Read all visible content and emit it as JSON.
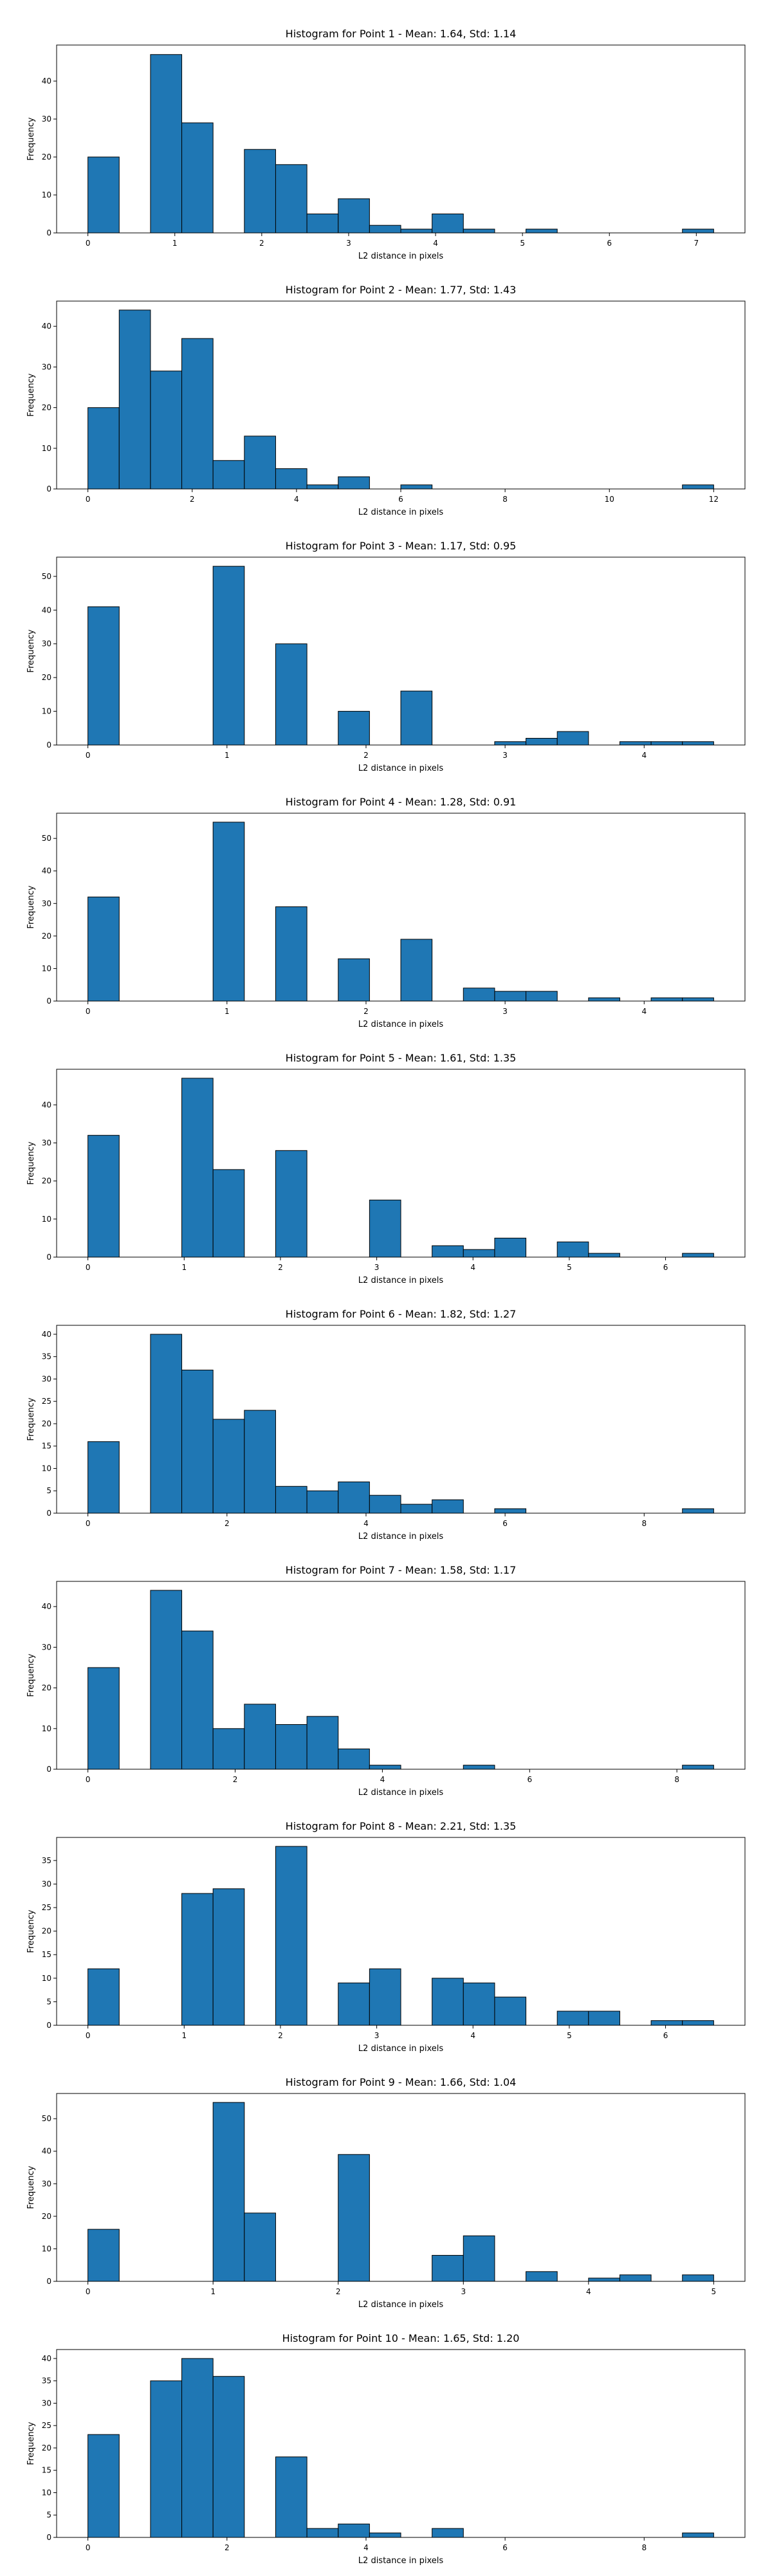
{
  "chart_data": [
    {
      "type": "bar",
      "title": "Histogram for Point 1 - Mean: 1.64, Std: 1.14",
      "xlabel": "L2 distance in pixels",
      "ylabel": "Frequency",
      "xlim": [
        -0.36,
        7.56
      ],
      "ylim": [
        0,
        49.5
      ],
      "xticks": [
        0,
        1,
        2,
        3,
        4,
        5,
        6,
        7
      ],
      "yticks": [
        0,
        10,
        20,
        30,
        40
      ],
      "bins": {
        "start": 0.0,
        "width": 0.36
      },
      "values": [
        20,
        0,
        47,
        29,
        0,
        22,
        18,
        5,
        9,
        2,
        1,
        5,
        1,
        0,
        1,
        0,
        0,
        0,
        0,
        1
      ]
    },
    {
      "type": "bar",
      "title": "Histogram for Point 2 - Mean: 1.77, Std: 1.43",
      "xlabel": "L2 distance in pixels",
      "ylabel": "Frequency",
      "xlim": [
        -0.6,
        12.6
      ],
      "ylim": [
        0,
        46.2
      ],
      "xticks": [
        0,
        2,
        4,
        6,
        8,
        10,
        12
      ],
      "yticks": [
        0,
        10,
        20,
        30,
        40
      ],
      "bins": {
        "start": 0.0,
        "width": 0.6
      },
      "values": [
        20,
        44,
        29,
        37,
        7,
        13,
        5,
        1,
        3,
        0,
        1,
        0,
        0,
        0,
        0,
        0,
        0,
        0,
        0,
        1
      ]
    },
    {
      "type": "bar",
      "title": "Histogram for Point 3 - Mean: 1.17, Std: 0.95",
      "xlabel": "L2 distance in pixels",
      "ylabel": "Frequency",
      "xlim": [
        -0.225,
        4.725
      ],
      "ylim": [
        0,
        55.7
      ],
      "xticks": [
        0,
        1,
        2,
        3,
        4
      ],
      "yticks": [
        0,
        10,
        20,
        30,
        40,
        50
      ],
      "bins": {
        "start": 0.0,
        "width": 0.225
      },
      "values": [
        41,
        0,
        0,
        0,
        53,
        0,
        30,
        0,
        10,
        0,
        16,
        0,
        0,
        1,
        2,
        4,
        0,
        1,
        1,
        1
      ]
    },
    {
      "type": "bar",
      "title": "Histogram for Point 4 - Mean: 1.28, Std: 0.91",
      "xlabel": "L2 distance in pixels",
      "ylabel": "Frequency",
      "xlim": [
        -0.225,
        4.725
      ],
      "ylim": [
        0,
        57.75
      ],
      "xticks": [
        0,
        1,
        2,
        3,
        4
      ],
      "yticks": [
        0,
        10,
        20,
        30,
        40,
        50
      ],
      "bins": {
        "start": 0.0,
        "width": 0.225
      },
      "values": [
        32,
        0,
        0,
        0,
        55,
        0,
        29,
        0,
        13,
        0,
        19,
        0,
        4,
        3,
        3,
        0,
        1,
        0,
        1,
        1
      ]
    },
    {
      "type": "bar",
      "title": "Histogram for Point 5 - Mean: 1.61, Std: 1.35",
      "xlabel": "L2 distance in pixels",
      "ylabel": "Frequency",
      "xlim": [
        -0.325,
        6.825
      ],
      "ylim": [
        0,
        49.35
      ],
      "xticks": [
        0,
        1,
        2,
        3,
        4,
        5,
        6
      ],
      "yticks": [
        0,
        10,
        20,
        30,
        40
      ],
      "bins": {
        "start": 0.0,
        "width": 0.325
      },
      "values": [
        32,
        0,
        0,
        47,
        23,
        0,
        28,
        0,
        0,
        15,
        0,
        3,
        2,
        5,
        0,
        4,
        1,
        0,
        0,
        1
      ]
    },
    {
      "type": "bar",
      "title": "Histogram for Point 6 - Mean: 1.82, Std: 1.27",
      "xlabel": "L2 distance in pixels",
      "ylabel": "Frequency",
      "xlim": [
        -0.45,
        9.45
      ],
      "ylim": [
        0,
        42.0
      ],
      "xticks": [
        0,
        2,
        4,
        6,
        8
      ],
      "yticks": [
        0,
        5,
        10,
        15,
        20,
        25,
        30,
        35,
        40
      ],
      "bins": {
        "start": 0.0,
        "width": 0.45
      },
      "values": [
        16,
        0,
        40,
        32,
        21,
        23,
        6,
        5,
        7,
        4,
        2,
        3,
        0,
        1,
        0,
        0,
        0,
        0,
        0,
        1
      ]
    },
    {
      "type": "bar",
      "title": "Histogram for Point 7 - Mean: 1.58, Std: 1.17",
      "xlabel": "L2 distance in pixels",
      "ylabel": "Frequency",
      "xlim": [
        -0.425,
        8.925
      ],
      "ylim": [
        0,
        46.2
      ],
      "xticks": [
        0,
        2,
        4,
        6,
        8
      ],
      "yticks": [
        0,
        10,
        20,
        30,
        40
      ],
      "bins": {
        "start": 0.0,
        "width": 0.425
      },
      "values": [
        25,
        0,
        44,
        34,
        10,
        16,
        11,
        13,
        5,
        1,
        0,
        0,
        1,
        0,
        0,
        0,
        0,
        0,
        0,
        1
      ]
    },
    {
      "type": "bar",
      "title": "Histogram for Point 8 - Mean: 2.21, Std: 1.35",
      "xlabel": "L2 distance in pixels",
      "ylabel": "Frequency",
      "xlim": [
        -0.325,
        6.825
      ],
      "ylim": [
        0,
        39.9
      ],
      "xticks": [
        0,
        1,
        2,
        3,
        4,
        5,
        6
      ],
      "yticks": [
        0,
        5,
        10,
        15,
        20,
        25,
        30,
        35
      ],
      "bins": {
        "start": 0.0,
        "width": 0.325
      },
      "values": [
        12,
        0,
        0,
        28,
        29,
        0,
        38,
        0,
        9,
        12,
        0,
        10,
        9,
        6,
        0,
        3,
        3,
        0,
        1,
        1
      ]
    },
    {
      "type": "bar",
      "title": "Histogram for Point 9 - Mean: 1.66, Std: 1.04",
      "xlabel": "L2 distance in pixels",
      "ylabel": "Frequency",
      "xlim": [
        -0.25,
        5.25
      ],
      "ylim": [
        0,
        57.75
      ],
      "xticks": [
        0,
        1,
        2,
        3,
        4,
        5
      ],
      "yticks": [
        0,
        10,
        20,
        30,
        40,
        50
      ],
      "bins": {
        "start": 0.0,
        "width": 0.25
      },
      "values": [
        16,
        0,
        0,
        0,
        55,
        21,
        0,
        0,
        39,
        0,
        0,
        8,
        14,
        0,
        3,
        0,
        1,
        2,
        0,
        2
      ]
    },
    {
      "type": "bar",
      "title": "Histogram for Point 10 - Mean: 1.65, Std: 1.20",
      "xlabel": "L2 distance in pixels",
      "ylabel": "Frequency",
      "xlim": [
        -0.45,
        9.45
      ],
      "ylim": [
        0,
        42.0
      ],
      "xticks": [
        0,
        2,
        4,
        6,
        8
      ],
      "yticks": [
        0,
        5,
        10,
        15,
        20,
        25,
        30,
        35,
        40
      ],
      "bins": {
        "start": 0.0,
        "width": 0.45
      },
      "values": [
        23,
        0,
        35,
        40,
        36,
        0,
        18,
        2,
        3,
        1,
        0,
        2,
        0,
        0,
        0,
        0,
        0,
        0,
        0,
        1
      ]
    }
  ],
  "colors": {
    "bar_fill": "#1f77b4",
    "bar_edge": "#000000"
  }
}
